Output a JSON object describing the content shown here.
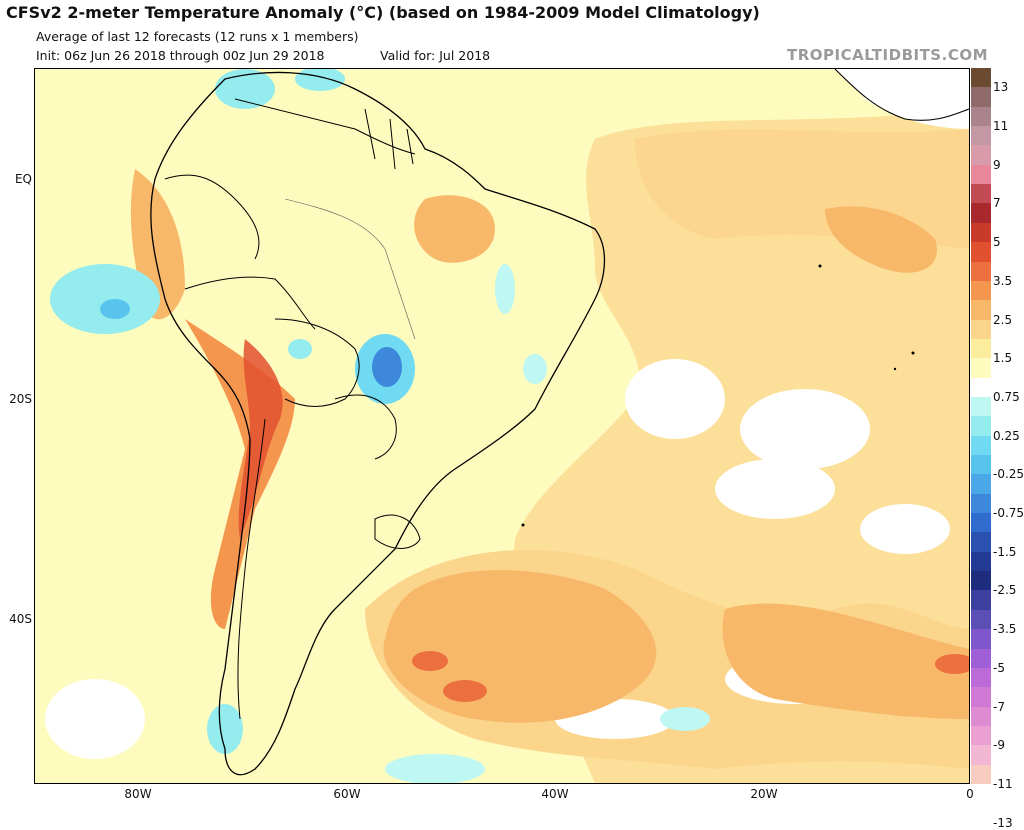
{
  "header": {
    "title": "CFSv2 2-meter Temperature Anomaly (°C) (based on 1984-2009 Model Climatology)",
    "subtitle": "Average of last 12 forecasts (12 runs x 1 members)",
    "init": "Init: 06z Jun 26 2018 through 00z Jun 29 2018",
    "valid": "Valid for: Jul 2018",
    "brand": "TROPICALTIDBITS.COM"
  },
  "axes": {
    "lat_labels": [
      "EQ",
      "20S",
      "40S"
    ],
    "lon_labels": [
      "80W",
      "60W",
      "40W",
      "20W",
      "0"
    ]
  },
  "colorbar": {
    "labels": [
      "13",
      "11",
      "9",
      "7",
      "5",
      "3.5",
      "2.5",
      "1.5",
      "0.75",
      "0.25",
      "-0.25",
      "-0.75",
      "-1.5",
      "-2.5",
      "-3.5",
      "-5",
      "-7",
      "-9",
      "-11",
      "-13"
    ],
    "colors": [
      "#6b4a32",
      "#8f6a6a",
      "#a9848c",
      "#c497a4",
      "#d99aa9",
      "#e8869a",
      "#c24a52",
      "#a8282e",
      "#c83a2a",
      "#e2512f",
      "#ec6f40",
      "#f5964f",
      "#f8b86a",
      "#fbd58c",
      "#fcec9e",
      "#fdfcbe",
      "#ffffff",
      "#bff7f2",
      "#94ecef",
      "#6fdaf1",
      "#58c4ee",
      "#4aa8e8",
      "#3d88db",
      "#2f6ccd",
      "#2a50b0",
      "#233a94",
      "#1d2c7c",
      "#3c3f9e",
      "#5b4fb6",
      "#7f56cb",
      "#9f5fd6",
      "#bb6ad8",
      "#cf78d4",
      "#df8bd2",
      "#eaa0d2",
      "#f2b7d3",
      "#f8cdc0"
    ],
    "color_meaning": {
      "warm_strong": "#e2512f",
      "warm": "#f5964f",
      "warm_light": "#fbd58c",
      "near_zero_warm": "#fdfcbe",
      "near_zero": "#ffffff",
      "cool": "#94ecef",
      "cool_strong": "#3d88db"
    }
  },
  "map": {
    "region": "South America and South Atlantic",
    "background_anomaly": "slightly warm"
  }
}
